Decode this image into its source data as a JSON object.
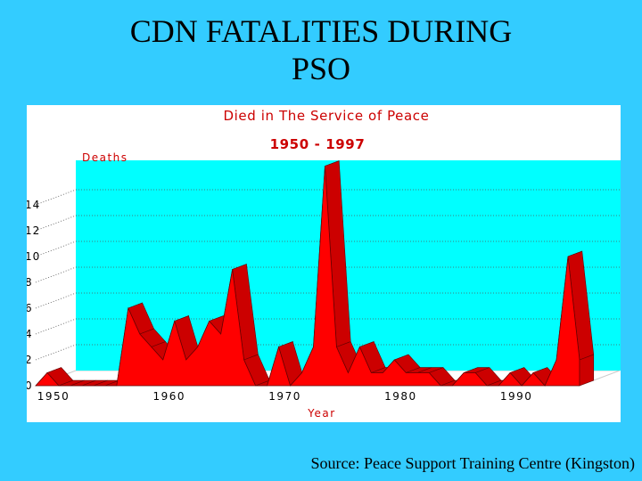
{
  "slide": {
    "title_line1": "CDN FATALITIES DURING",
    "title_line2": "PSO",
    "source": "Source: Peace Support Training Centre (Kingston)"
  },
  "chart_data": {
    "type": "area",
    "title": "Died in The Service of Peace",
    "subtitle": "1950 - 1997",
    "ylabel": "Deaths",
    "xlabel": "Year",
    "ylim": [
      0,
      16
    ],
    "yticks": [
      0,
      2,
      4,
      6,
      8,
      10,
      12,
      14
    ],
    "xticks": [
      1950,
      1960,
      1970,
      1980,
      1990
    ],
    "grid": true,
    "x": [
      1950,
      1951,
      1952,
      1953,
      1954,
      1955,
      1956,
      1957,
      1958,
      1959,
      1960,
      1961,
      1962,
      1963,
      1964,
      1965,
      1966,
      1967,
      1968,
      1969,
      1970,
      1971,
      1972,
      1973,
      1974,
      1975,
      1976,
      1977,
      1978,
      1979,
      1980,
      1981,
      1982,
      1983,
      1984,
      1985,
      1986,
      1987,
      1988,
      1989,
      1990,
      1991,
      1992,
      1993,
      1994,
      1995,
      1996,
      1997
    ],
    "values": [
      0,
      1,
      0,
      0,
      0,
      0,
      0,
      0,
      6,
      4,
      3,
      2,
      5,
      2,
      3,
      5,
      4,
      9,
      2,
      0,
      0,
      3,
      0,
      1,
      3,
      17,
      3,
      1,
      3,
      1,
      1,
      2,
      1,
      1,
      1,
      0,
      0,
      1,
      1,
      0,
      0,
      1,
      0,
      1,
      0,
      2,
      10,
      2
    ],
    "colors": {
      "area_front": "#ff0000",
      "area_side": "#cc0000",
      "area_edge": "#660000",
      "wall": "#00ffff",
      "floor": "#ffffff"
    }
  }
}
